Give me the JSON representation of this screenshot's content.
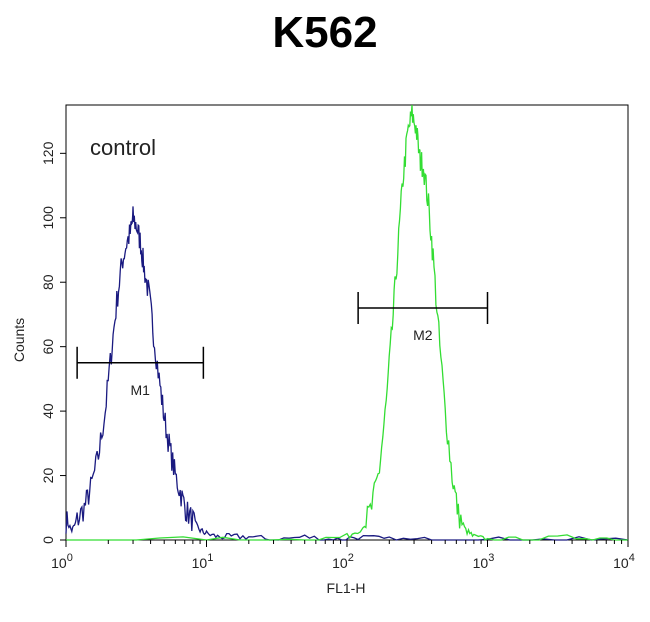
{
  "chart_data": {
    "type": "line",
    "title": "K562",
    "xlabel": "FL1-H",
    "ylabel": "Counts",
    "x_scale": "log",
    "xlim": [
      1,
      10000
    ],
    "ylim": [
      0,
      135
    ],
    "x_ticks": [
      {
        "value": 1,
        "base": "10",
        "exp": "0"
      },
      {
        "value": 10,
        "base": "10",
        "exp": "1"
      },
      {
        "value": 100,
        "base": "10",
        "exp": "2"
      },
      {
        "value": 1000,
        "base": "10",
        "exp": "3"
      },
      {
        "value": 10000,
        "base": "10",
        "exp": "4"
      }
    ],
    "y_ticks": [
      0,
      20,
      40,
      60,
      80,
      100,
      120
    ],
    "annotation": "control",
    "grid": false,
    "series": [
      {
        "color": "#1a1a80",
        "x": [
          1.0,
          1.1,
          1.2,
          1.35,
          1.5,
          1.7,
          1.9,
          2.1,
          2.3,
          2.5,
          2.7,
          2.9,
          3.0,
          3.2,
          3.4,
          3.6,
          3.9,
          4.2,
          4.6,
          5.0,
          5.5,
          6.0,
          6.6,
          7.2,
          8.0,
          9.0,
          10.0,
          12.0,
          15.0,
          20.0,
          30.0,
          50.0,
          80.0,
          120.0,
          200.0,
          400.0,
          1000.0,
          3000.0,
          10000.0
        ],
        "y": [
          6,
          3,
          6,
          10,
          16,
          26,
          40,
          58,
          74,
          86,
          92,
          96,
          100,
          97,
          92,
          84,
          76,
          64,
          50,
          38,
          28,
          20,
          14,
          9,
          6,
          3,
          2,
          1,
          1,
          1,
          0,
          1,
          0,
          1,
          0,
          0,
          0,
          0,
          0
        ]
      },
      {
        "color": "#33dd33",
        "x": [
          1.0,
          10.0,
          50.0,
          100.0,
          130.0,
          150.0,
          170.0,
          190.0,
          210.0,
          230.0,
          250.0,
          270.0,
          290.0,
          310.0,
          330.0,
          350.0,
          380.0,
          410.0,
          450.0,
          500.0,
          560.0,
          620.0,
          700.0,
          800.0,
          1000.0,
          2000.0,
          5000.0,
          10000.0
        ],
        "y": [
          0,
          0,
          0,
          1,
          4,
          10,
          22,
          42,
          66,
          90,
          112,
          126,
          132,
          128,
          118,
          116,
          104,
          88,
          64,
          40,
          20,
          8,
          3,
          1,
          0,
          0,
          1,
          0
        ]
      }
    ],
    "gates": [
      {
        "label": "M1",
        "x_start": 1.2,
        "x_end": 9.5,
        "y": 55
      },
      {
        "label": "M2",
        "x_start": 120,
        "x_end": 1000,
        "y": 72
      }
    ]
  }
}
